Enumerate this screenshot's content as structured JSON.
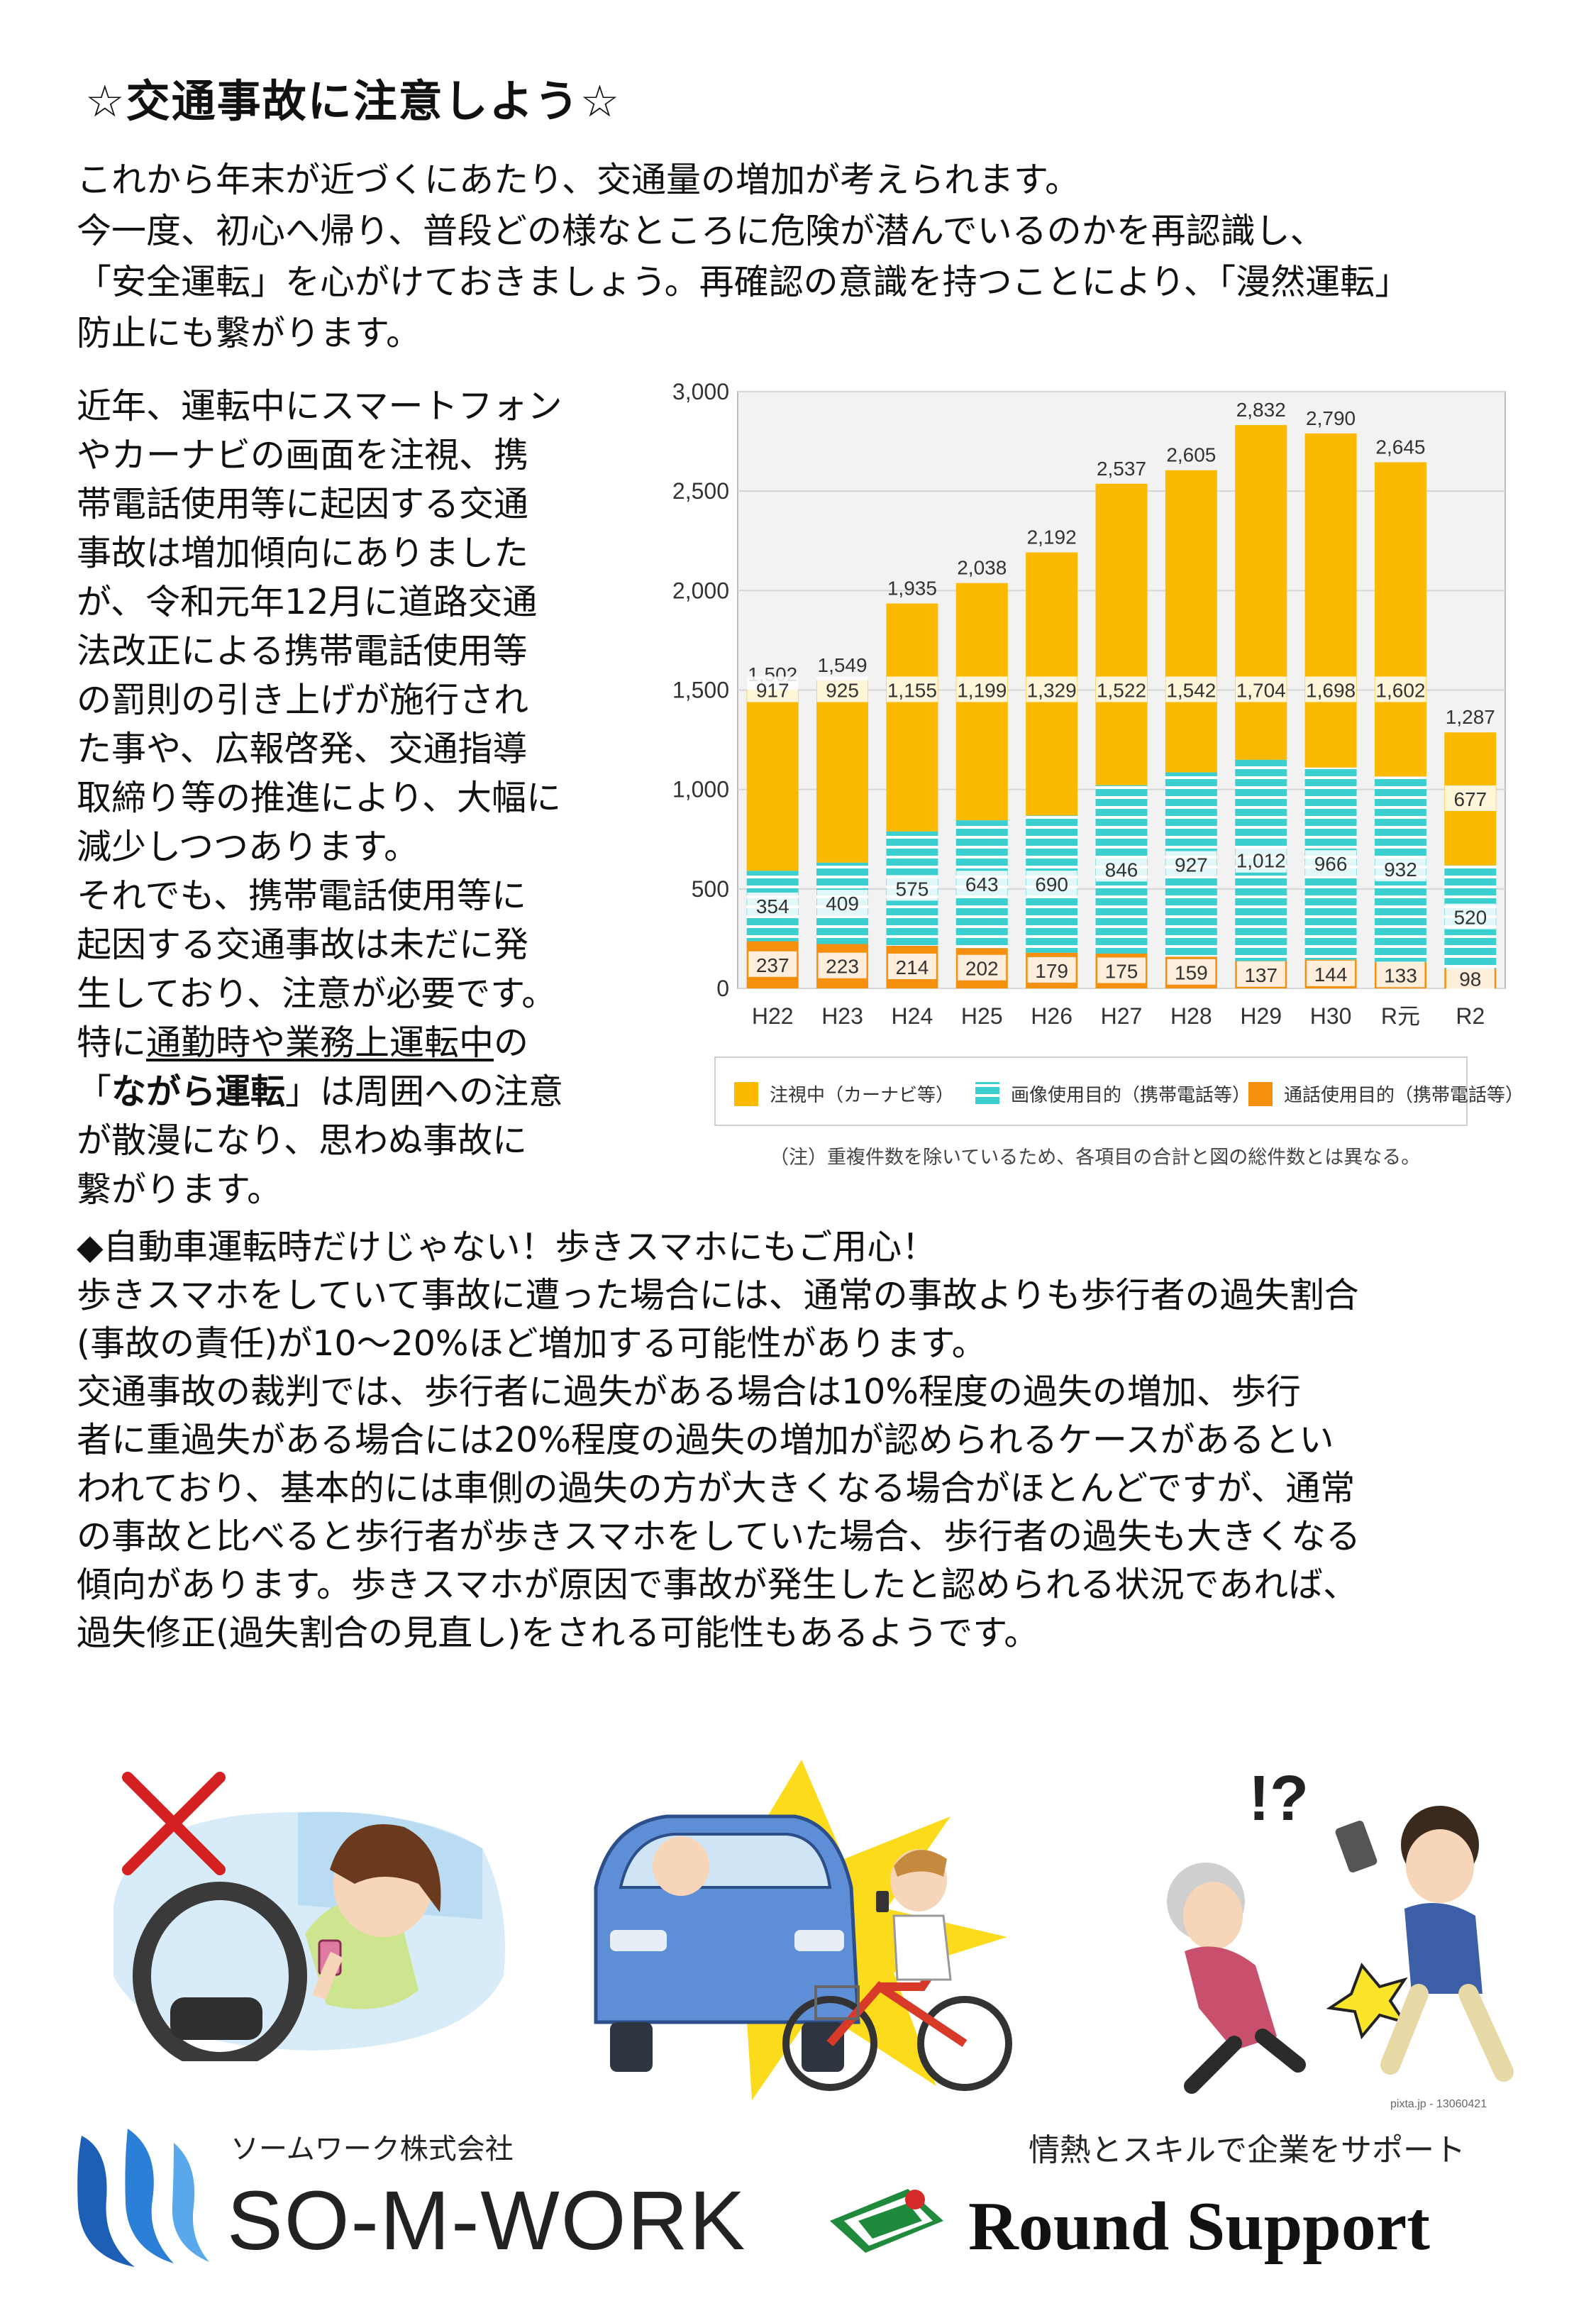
{
  "title": "☆交通事故に注意しよう☆",
  "intro": [
    "これから年末が近づくにあたり、交通量の増加が考えられます。",
    "今一度、初心へ帰り、普段どの様なところに危険が潜んでいるのかを再認識し、",
    "「安全運転」を心がけておきましょう。再確認の意識を持つことにより、「漫然運転」",
    "防止にも繋がります。"
  ],
  "left_text": {
    "lines": [
      "近年、運転中にスマートフォン",
      "やカーナビの画面を注視、携",
      "帯電話使用等に起因する交通",
      "事故は増加傾向にありました",
      "が、令和元年12月に道路交通",
      "法改正による携帯電話使用等",
      "の罰則の引き上げが施行され",
      "た事や、広報啓発、交通指導",
      "取締り等の推進により、大幅に",
      "減少しつつあります。",
      "それでも、携帯電話使用等に",
      "起因する交通事故は未だに発",
      "生しており、注意が必要です。"
    ],
    "l14_pre": "特に",
    "l14_u": "通勤時や業務上運転中",
    "l14_post": "の",
    "l15_pre": "「",
    "l15_b": "ながら運転",
    "l15_post": "」は周囲への注意",
    "l16": "が散漫になり、思わぬ事故に",
    "l17": "繋がります。"
  },
  "chart_data": {
    "type": "bar",
    "stacked": true,
    "categories": [
      "H22",
      "H23",
      "H24",
      "H25",
      "H26",
      "H27",
      "H28",
      "H29",
      "H30",
      "R元",
      "R2"
    ],
    "series": [
      {
        "name": "通話使用目的（携帯電話等）",
        "color": "#f5900f",
        "values": [
          237,
          223,
          214,
          202,
          179,
          175,
          159,
          137,
          144,
          133,
          98
        ]
      },
      {
        "name": "画像使用目的（携帯電話等）",
        "color": "#3ccfd0",
        "values": [
          354,
          409,
          575,
          643,
          690,
          846,
          927,
          1012,
          966,
          932,
          520
        ]
      },
      {
        "name": "注視中（カーナビ等）",
        "color": "#fbb900",
        "values": [
          917,
          925,
          1155,
          1199,
          1329,
          1522,
          1542,
          1704,
          1698,
          1602,
          677
        ]
      }
    ],
    "totals": [
      1502,
      1549,
      1935,
      2038,
      2192,
      2537,
      2605,
      2832,
      2790,
      2645,
      1287
    ],
    "total_labels": [
      "1,502",
      "1,549",
      "1,935",
      "2,038",
      "2,192",
      "2,537",
      "2,605",
      "2,832",
      "2,790",
      "2,645",
      "1,287"
    ],
    "value_labels": {
      "call": [
        "237",
        "223",
        "214",
        "202",
        "179",
        "175",
        "159",
        "137",
        "144",
        "133",
        "98"
      ],
      "image": [
        "354",
        "409",
        "575",
        "643",
        "690",
        "846",
        "927",
        "1,012",
        "966",
        "932",
        "520"
      ],
      "watch": [
        "917",
        "925",
        "1,155",
        "1,199",
        "1,329",
        "1,522",
        "1,542",
        "1,704",
        "1,698",
        "1,602",
        "677"
      ]
    },
    "yticks": [
      0,
      500,
      1000,
      1500,
      2000,
      2500,
      3000
    ],
    "ytick_labels": [
      "0",
      "500",
      "1,000",
      "1,500",
      "2,000",
      "2,500",
      "3,000"
    ],
    "ylim": [
      0,
      3000
    ],
    "legend_labels": [
      "注視中（カーナビ等）",
      "画像使用目的（携帯電話等）",
      "通話使用目的（携帯電話等）"
    ],
    "legend_colors": [
      "#fbb900",
      "#3ccfd0",
      "#f5900f"
    ],
    "legend_position": "bottom",
    "note": "（注）重複件数を除いているため、各項目の合計と図の総件数とは異なる。"
  },
  "body2": [
    "◆自動車運転時だけじゃない！歩きスマホにもご用心！",
    "歩きスマホをしていて事故に遭った場合には、通常の事故よりも歩行者の過失割合",
    "(事故の責任)が10〜20%ほど増加する可能性があります。",
    "交通事故の裁判では、歩行者に過失がある場合は10%程度の過失の増加、歩行",
    "者に重過失がある場合には20%程度の過失の増加が認められるケースがあるとい",
    "われており、基本的には車側の過失の方が大きくなる場合がほとんどですが、通常",
    "の事故と比べると歩行者が歩きスマホをしていた場合、歩行者の過失も大きくなる",
    "傾向があります。歩きスマホが原因で事故が発生したと認められる状況であれば、",
    "過失修正(過失割合の見直し)をされる可能性もあるようです。"
  ],
  "illustrations": {
    "credit": "pixta.jp - 13060421",
    "exclaim": "!?"
  },
  "logos": {
    "somwork_sub": "ソームワーク株式会社",
    "somwork_main": "SO-M-WORK",
    "round_sub": "情熱とスキルで企業をサポート",
    "round_main": "Round Support",
    "colors": {
      "somwork_blue": "#1d5fb5",
      "round_green": "#1f8a3c"
    }
  }
}
